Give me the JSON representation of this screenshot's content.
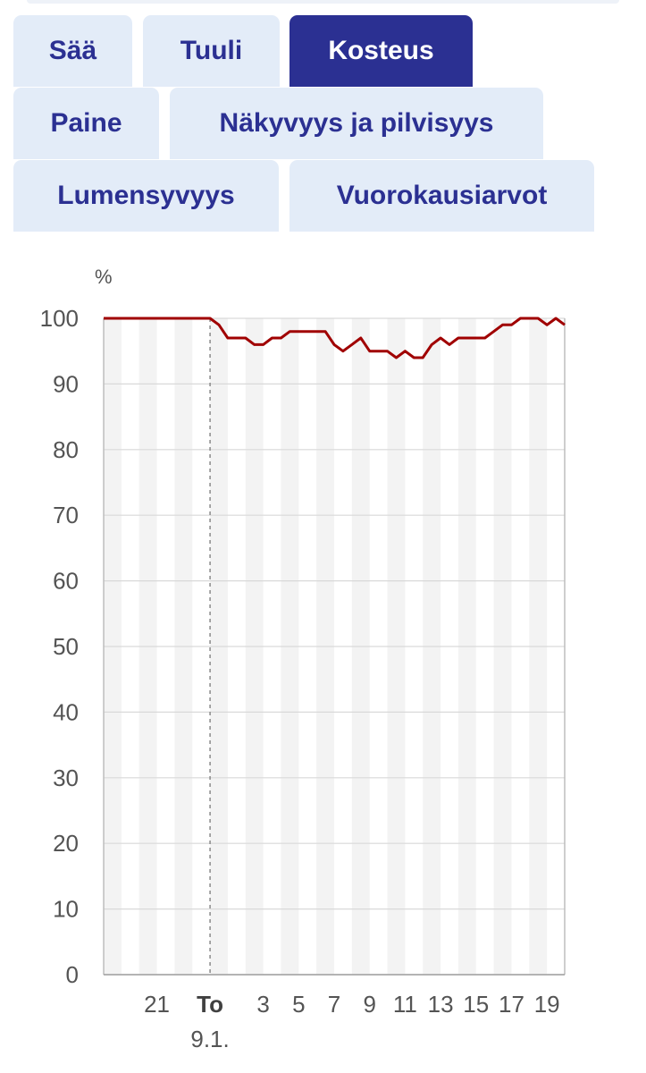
{
  "tabs": [
    {
      "label": "Sää",
      "active": false
    },
    {
      "label": "Tuuli",
      "active": false
    },
    {
      "label": "Kosteus",
      "active": true
    },
    {
      "label": "Paine",
      "active": false
    },
    {
      "label": "Näkyvyys ja pilvisyys",
      "active": false
    },
    {
      "label": "Lumensyvyys",
      "active": false
    },
    {
      "label": "Vuorokausiarvot",
      "active": false
    }
  ],
  "colors": {
    "tab_bg": "#e3ecf8",
    "tab_active_bg": "#2b3092",
    "tab_text": "#2b3092",
    "line": "#a00000",
    "stripe": "#f3f3f3",
    "grid": "#d9d9d9"
  },
  "chart_data": {
    "type": "line",
    "ylabel": "%",
    "ylim": [
      0,
      100
    ],
    "yticks": [
      "0",
      "10",
      "20",
      "30",
      "40",
      "50",
      "60",
      "70",
      "80",
      "90",
      "100"
    ],
    "x_range_hours": [
      18,
      20
    ],
    "x_ticks": [
      {
        "hour": 21,
        "label": "21",
        "bold": false
      },
      {
        "hour": 24,
        "label": "To",
        "sublabel": "9.1.",
        "bold": true
      },
      {
        "hour": 27,
        "label": "3",
        "bold": false
      },
      {
        "hour": 29,
        "label": "5",
        "bold": false
      },
      {
        "hour": 31,
        "label": "7",
        "bold": false
      },
      {
        "hour": 33,
        "label": "9",
        "bold": false
      },
      {
        "hour": 35,
        "label": "11",
        "bold": false
      },
      {
        "hour": 37,
        "label": "13",
        "bold": false
      },
      {
        "hour": 39,
        "label": "15",
        "bold": false
      },
      {
        "hour": 41,
        "label": "17",
        "bold": false
      },
      {
        "hour": 43,
        "label": "19",
        "bold": false
      }
    ],
    "day_boundary_hour": 24,
    "series": [
      {
        "points": [
          [
            18,
            100
          ],
          [
            24,
            100
          ],
          [
            24.5,
            99
          ],
          [
            25,
            97
          ],
          [
            25.5,
            97
          ],
          [
            26,
            97
          ],
          [
            26.5,
            96
          ],
          [
            27,
            96
          ],
          [
            27.5,
            97
          ],
          [
            28,
            97
          ],
          [
            28.5,
            98
          ],
          [
            29,
            98
          ],
          [
            29.5,
            98
          ],
          [
            30,
            98
          ],
          [
            30.5,
            98
          ],
          [
            31,
            96
          ],
          [
            31.5,
            95
          ],
          [
            32,
            96
          ],
          [
            32.5,
            97
          ],
          [
            33,
            95
          ],
          [
            33.5,
            95
          ],
          [
            34,
            95
          ],
          [
            34.5,
            94
          ],
          [
            35,
            95
          ],
          [
            35.5,
            94
          ],
          [
            36,
            94
          ],
          [
            36.5,
            96
          ],
          [
            37,
            97
          ],
          [
            37.5,
            96
          ],
          [
            38,
            97
          ],
          [
            38.5,
            97
          ],
          [
            39,
            97
          ],
          [
            39.5,
            97
          ],
          [
            40,
            98
          ],
          [
            40.5,
            99
          ],
          [
            41,
            99
          ],
          [
            41.5,
            100
          ],
          [
            42,
            100
          ],
          [
            42.5,
            100
          ],
          [
            43,
            99
          ],
          [
            43.5,
            100
          ],
          [
            44,
            99
          ]
        ]
      }
    ]
  }
}
